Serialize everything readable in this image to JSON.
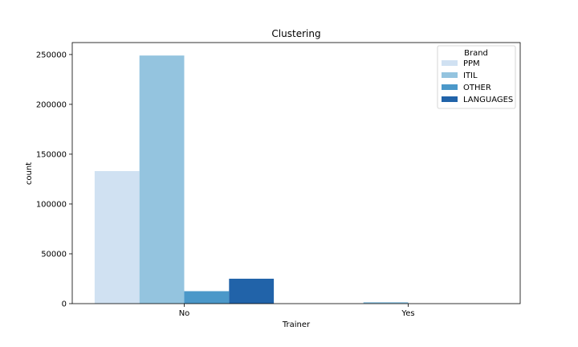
{
  "chart_data": {
    "type": "bar",
    "title": "Clustering",
    "xlabel": "Trainer",
    "ylabel": "count",
    "categories": [
      "No",
      "Yes"
    ],
    "series": [
      {
        "name": "PPM",
        "values": [
          133000,
          0
        ],
        "color": "#d0e1f2"
      },
      {
        "name": "ITIL",
        "values": [
          249000,
          1500
        ],
        "color": "#94c4df"
      },
      {
        "name": "OTHER",
        "values": [
          12500,
          0
        ],
        "color": "#4b98c9"
      },
      {
        "name": "LANGUAGES",
        "values": [
          25000,
          0
        ],
        "color": "#2163a9"
      }
    ],
    "ylim": [
      0,
      262000
    ],
    "yticks": [
      0,
      50000,
      100000,
      150000,
      200000,
      250000
    ],
    "ytick_labels": [
      "0",
      "50000",
      "100000",
      "150000",
      "200000",
      "250000"
    ],
    "grid": false,
    "legend": {
      "title": "Brand",
      "placement": "top-right"
    }
  }
}
